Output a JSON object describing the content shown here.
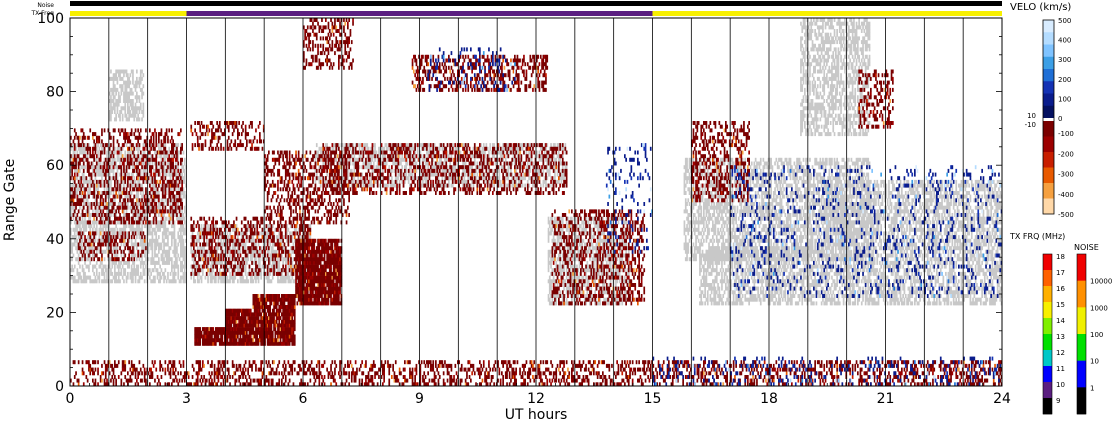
{
  "chart_data": {
    "type": "heatmap",
    "title": "",
    "xlabel": "UT hours",
    "ylabel": "Range Gate",
    "xlim": [
      0,
      24
    ],
    "ylim": [
      0,
      100
    ],
    "x_ticks": [
      0,
      3,
      6,
      9,
      12,
      15,
      18,
      21,
      24
    ],
    "y_ticks": [
      0,
      20,
      40,
      60,
      80,
      100
    ],
    "hour_lines": [
      1,
      2,
      3,
      4,
      5,
      6,
      7,
      8,
      9,
      10,
      11,
      12,
      13,
      14,
      15,
      16,
      17,
      18,
      19,
      20,
      21,
      22,
      23
    ],
    "top_bars": {
      "noise_label": "Noise",
      "txfreq_label": "TX Freq",
      "txfreq_segments": [
        {
          "start": 0,
          "end": 3,
          "color": "#f8f000"
        },
        {
          "start": 3,
          "end": 15,
          "color": "#5a1e80"
        },
        {
          "start": 15,
          "end": 24,
          "color": "#f8f000"
        }
      ]
    },
    "velocity_colorbar": {
      "label": "VELO (km/s)",
      "ticks_upper": [
        "500",
        "400",
        "300",
        "200",
        "100",
        "0"
      ],
      "ticks_lower": [
        "-100",
        "-200",
        "-300",
        "-400",
        "-500"
      ],
      "side_labels": [
        "10",
        "-10"
      ],
      "colors_upper": [
        "#d8ecff",
        "#b4dcff",
        "#7fc3ff",
        "#3c9fe6",
        "#1f6fd6",
        "#1432b4",
        "#0a1c8c",
        "#041060"
      ],
      "colors_lower": [
        "#7a0000",
        "#9c0000",
        "#c81e00",
        "#e85a00",
        "#f5a040",
        "#ffd8a8"
      ]
    },
    "txfreq_colorbar": {
      "label": "TX FRQ (MHz)",
      "ticks": [
        "18",
        "17",
        "16",
        "15",
        "14",
        "13",
        "12",
        "11",
        "10",
        "9"
      ],
      "colors": [
        "#f00000",
        "#ff6000",
        "#ffb000",
        "#f8f000",
        "#80f000",
        "#00e000",
        "#00c8c8",
        "#0000ff",
        "#5a1e80",
        "#000000"
      ]
    },
    "noise_colorbar": {
      "label": "NOISE",
      "ticks": [
        "10000",
        "1000",
        "100",
        "10",
        "1"
      ],
      "colors": [
        "#f00000",
        "#ff9000",
        "#f0f000",
        "#00e000",
        "#0000ff",
        "#000000"
      ]
    },
    "ground_scatter_color": "#c8c8c8",
    "regions": [
      {
        "kind": "ground_scatter",
        "x0": 0.0,
        "x1": 3.0,
        "y0": 28,
        "y1": 66
      },
      {
        "kind": "ground_scatter",
        "x0": 1.0,
        "x1": 1.9,
        "y0": 72,
        "y1": 86
      },
      {
        "kind": "ground_scatter",
        "x0": 6.3,
        "x1": 12.8,
        "y0": 54,
        "y1": 66
      },
      {
        "kind": "ground_scatter",
        "x0": 3.1,
        "x1": 6.2,
        "y0": 28,
        "y1": 44
      },
      {
        "kind": "ground_scatter",
        "x0": 15.8,
        "x1": 20.6,
        "y0": 34,
        "y1": 62
      },
      {
        "kind": "ground_scatter",
        "x0": 16.2,
        "x1": 24.0,
        "y0": 22,
        "y1": 38
      },
      {
        "kind": "ground_scatter",
        "x0": 19.4,
        "x1": 24.0,
        "y0": 38,
        "y1": 56
      },
      {
        "kind": "ground_scatter",
        "x0": 12.3,
        "x1": 14.4,
        "y0": 22,
        "y1": 46
      },
      {
        "kind": "ground_scatter",
        "x0": 18.8,
        "x1": 20.6,
        "y0": 68,
        "y1": 100
      },
      {
        "kind": "negative_velocity",
        "x0": 0.0,
        "x1": 2.9,
        "y0": 44,
        "y1": 70
      },
      {
        "kind": "negative_velocity",
        "x0": 0.2,
        "x1": 2.0,
        "y0": 34,
        "y1": 42
      },
      {
        "kind": "negative_velocity",
        "x0": 3.1,
        "x1": 5.0,
        "y0": 64,
        "y1": 72
      },
      {
        "kind": "negative_velocity",
        "x0": 3.1,
        "x1": 6.2,
        "y0": 30,
        "y1": 46
      },
      {
        "kind": "negative_velocity",
        "x0": 5.0,
        "x1": 7.2,
        "y0": 44,
        "y1": 64
      },
      {
        "kind": "negative_velocity",
        "x0": 6.5,
        "x1": 12.8,
        "y0": 52,
        "y1": 66
      },
      {
        "kind": "negative_velocity",
        "x0": 8.8,
        "x1": 12.3,
        "y0": 80,
        "y1": 90
      },
      {
        "kind": "negative_velocity",
        "x0": 6.0,
        "x1": 7.3,
        "y0": 86,
        "y1": 100
      },
      {
        "kind": "negative_velocity",
        "x0": 0.0,
        "x1": 24.0,
        "y0": 0,
        "y1": 7
      },
      {
        "kind": "negative_velocity",
        "x0": 12.4,
        "x1": 14.8,
        "y0": 22,
        "y1": 48
      },
      {
        "kind": "negative_velocity",
        "x0": 16.0,
        "x1": 17.5,
        "y0": 50,
        "y1": 72
      },
      {
        "kind": "negative_velocity",
        "x0": 20.3,
        "x1": 21.2,
        "y0": 70,
        "y1": 86
      },
      {
        "kind": "positive_velocity",
        "x0": 9.2,
        "x1": 11.5,
        "y0": 80,
        "y1": 92
      },
      {
        "kind": "positive_velocity",
        "x0": 13.8,
        "x1": 15.0,
        "y0": 36,
        "y1": 66
      },
      {
        "kind": "positive_velocity",
        "x0": 15.0,
        "x1": 24.0,
        "y0": 0,
        "y1": 8
      },
      {
        "kind": "positive_velocity",
        "x0": 17.0,
        "x1": 24.0,
        "y0": 24,
        "y1": 60
      }
    ],
    "bands": [
      {
        "kind": "negative_velocity",
        "x0": 3.2,
        "x1": 5.8,
        "y0": 11,
        "y1": 16
      },
      {
        "kind": "negative_velocity",
        "x0": 4.0,
        "x1": 5.8,
        "y0": 16,
        "y1": 21
      },
      {
        "kind": "negative_velocity",
        "x0": 4.7,
        "x1": 5.8,
        "y0": 21,
        "y1": 25
      },
      {
        "kind": "negative_velocity",
        "x0": 5.8,
        "x1": 7.0,
        "y0": 22,
        "y1": 40
      }
    ]
  }
}
